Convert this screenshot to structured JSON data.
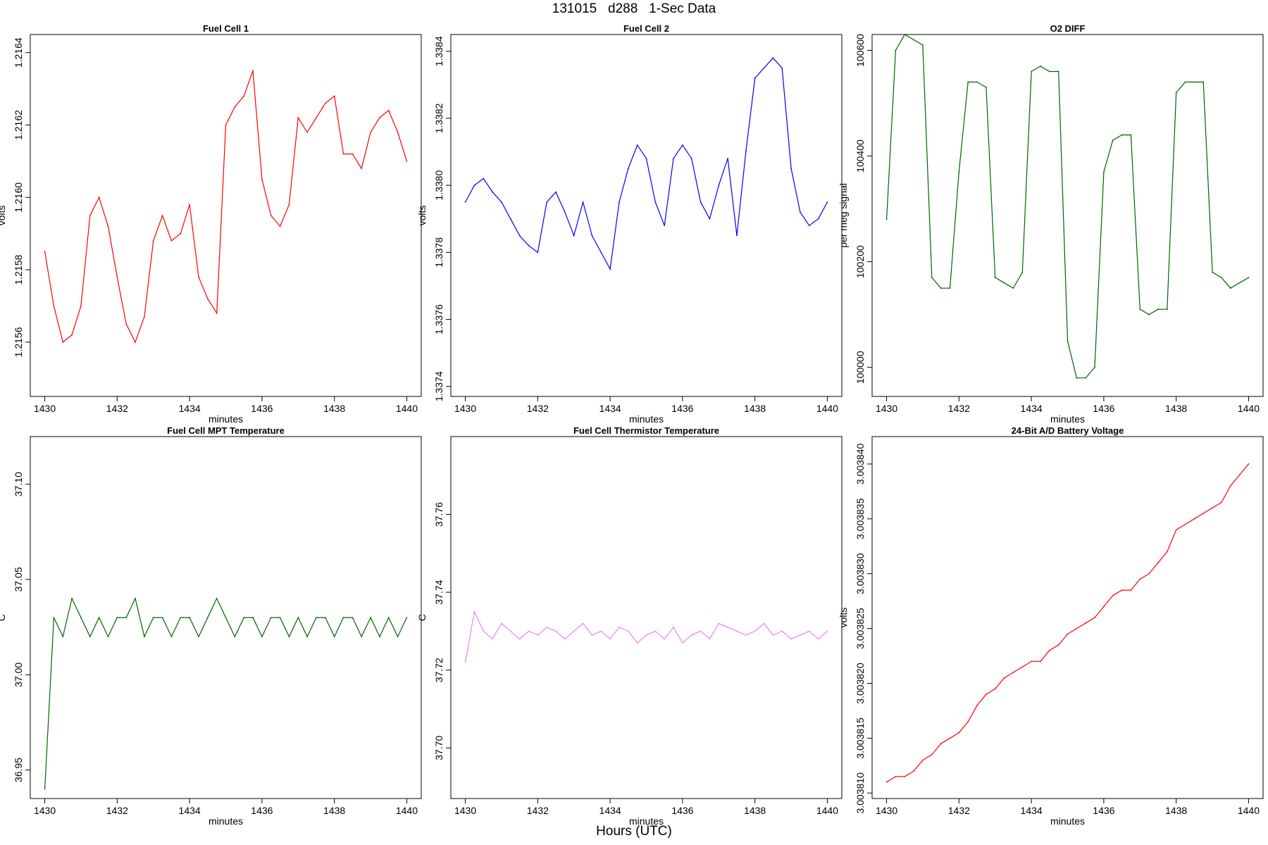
{
  "page": {
    "title": "131015   d288   1-Sec Data",
    "footer": "Hours (UTC)"
  },
  "chart_data": [
    {
      "type": "line",
      "title": "Fuel Cell 1",
      "xlabel": "minutes",
      "ylabel": "volts",
      "color": "#ff0000",
      "xlim": [
        1429.6,
        1440.4
      ],
      "ylim": [
        1.21545,
        1.21645
      ],
      "xticks": [
        1430,
        1432,
        1434,
        1436,
        1438,
        1440
      ],
      "yticks": [
        1.2156,
        1.2158,
        1.216,
        1.2162,
        1.2164
      ],
      "ytick_labels": [
        "1.2156",
        "1.2158",
        "1.2160",
        "1.2162",
        "1.2164"
      ],
      "series": [
        {
          "x": [
            1430,
            1430.25,
            1430.5,
            1430.75,
            1431,
            1431.25,
            1431.5,
            1431.75,
            1432,
            1432.25,
            1432.5,
            1432.75,
            1433,
            1433.25,
            1433.5,
            1433.75,
            1434,
            1434.25,
            1434.5,
            1434.75,
            1435,
            1435.25,
            1435.5,
            1435.75,
            1436,
            1436.25,
            1436.5,
            1436.75,
            1437,
            1437.25,
            1437.5,
            1437.75,
            1438,
            1438.25,
            1438.5,
            1438.75,
            1439,
            1439.25,
            1439.5,
            1439.75,
            1440
          ],
          "values": [
            1.21585,
            1.2157,
            1.2156,
            1.21562,
            1.2157,
            1.21595,
            1.216,
            1.21592,
            1.21578,
            1.21565,
            1.2156,
            1.21567,
            1.21588,
            1.21595,
            1.21588,
            1.2159,
            1.21598,
            1.21578,
            1.21572,
            1.21568,
            1.2162,
            1.21625,
            1.21628,
            1.21635,
            1.21605,
            1.21595,
            1.21592,
            1.21598,
            1.21622,
            1.21618,
            1.21622,
            1.21626,
            1.21628,
            1.21612,
            1.21612,
            1.21608,
            1.21618,
            1.21622,
            1.21624,
            1.21618,
            1.2161
          ]
        }
      ]
    },
    {
      "type": "line",
      "title": "Fuel Cell 2",
      "xlabel": "minutes",
      "ylabel": "volts",
      "color": "#0000ff",
      "xlim": [
        1429.6,
        1440.4
      ],
      "ylim": [
        1.33737,
        1.33845
      ],
      "xticks": [
        1430,
        1432,
        1434,
        1436,
        1438,
        1440
      ],
      "yticks": [
        1.3374,
        1.3376,
        1.3378,
        1.338,
        1.3382,
        1.3384
      ],
      "ytick_labels": [
        "1.3374",
        "1.3376",
        "1.3378",
        "1.3380",
        "1.3382",
        "1.3384"
      ],
      "series": [
        {
          "x": [
            1430,
            1430.25,
            1430.5,
            1430.75,
            1431,
            1431.25,
            1431.5,
            1431.75,
            1432,
            1432.25,
            1432.5,
            1432.75,
            1433,
            1433.25,
            1433.5,
            1433.75,
            1434,
            1434.25,
            1434.5,
            1434.75,
            1435,
            1435.25,
            1435.5,
            1435.75,
            1436,
            1436.25,
            1436.5,
            1436.75,
            1437,
            1437.25,
            1437.5,
            1437.75,
            1438,
            1438.25,
            1438.5,
            1438.75,
            1439,
            1439.25,
            1439.5,
            1439.75,
            1440
          ],
          "values": [
            1.33795,
            1.338,
            1.33802,
            1.33798,
            1.33795,
            1.3379,
            1.33785,
            1.33782,
            1.3378,
            1.33795,
            1.33798,
            1.33792,
            1.33785,
            1.33795,
            1.33785,
            1.3378,
            1.33775,
            1.33795,
            1.33805,
            1.33812,
            1.33808,
            1.33795,
            1.33788,
            1.33808,
            1.33812,
            1.33808,
            1.33795,
            1.3379,
            1.338,
            1.33808,
            1.33785,
            1.3381,
            1.33832,
            1.33835,
            1.33838,
            1.33835,
            1.33805,
            1.33792,
            1.33788,
            1.3379,
            1.33795
          ]
        }
      ]
    },
    {
      "type": "line",
      "title": "O2 DIFF",
      "xlabel": "minutes",
      "ylabel": "per meg signal",
      "color": "#006400",
      "xlim": [
        1429.6,
        1440.4
      ],
      "ylim": [
        99945,
        100630
      ],
      "xticks": [
        1430,
        1432,
        1434,
        1436,
        1438,
        1440
      ],
      "yticks": [
        100000,
        100200,
        100400,
        100600
      ],
      "ytick_labels": [
        "100000",
        "100200",
        "100400",
        "100600"
      ],
      "series": [
        {
          "x": [
            1430,
            1430.25,
            1430.5,
            1430.75,
            1431,
            1431.25,
            1431.5,
            1431.75,
            1432,
            1432.25,
            1432.5,
            1432.75,
            1433,
            1433.25,
            1433.5,
            1433.75,
            1434,
            1434.25,
            1434.5,
            1434.75,
            1435,
            1435.25,
            1435.5,
            1435.75,
            1436,
            1436.25,
            1436.5,
            1436.75,
            1437,
            1437.25,
            1437.5,
            1437.75,
            1438,
            1438.25,
            1438.5,
            1438.75,
            1439,
            1439.25,
            1439.5,
            1439.75,
            1440
          ],
          "values": [
            100280,
            100600,
            100630,
            100620,
            100610,
            100170,
            100150,
            100150,
            100370,
            100540,
            100540,
            100530,
            100170,
            100160,
            100150,
            100180,
            100560,
            100570,
            100560,
            100560,
            100050,
            99980,
            99980,
            100000,
            100370,
            100430,
            100440,
            100440,
            100110,
            100100,
            100110,
            100110,
            100520,
            100540,
            100540,
            100540,
            100180,
            100170,
            100150,
            100160,
            100170
          ]
        }
      ]
    },
    {
      "type": "line",
      "title": "Fuel Cell MPT Temperature",
      "xlabel": "minutes",
      "ylabel": "C",
      "color": "#006400",
      "xlim": [
        1429.6,
        1440.4
      ],
      "ylim": [
        36.935,
        37.125
      ],
      "xticks": [
        1430,
        1432,
        1434,
        1436,
        1438,
        1440
      ],
      "yticks": [
        36.95,
        37.0,
        37.05,
        37.1
      ],
      "ytick_labels": [
        "36.95",
        "37.00",
        "37.05",
        "37.10"
      ],
      "series": [
        {
          "x": [
            1430,
            1430.25,
            1430.5,
            1430.75,
            1431,
            1431.25,
            1431.5,
            1431.75,
            1432,
            1432.25,
            1432.5,
            1432.75,
            1433,
            1433.25,
            1433.5,
            1433.75,
            1434,
            1434.25,
            1434.5,
            1434.75,
            1435,
            1435.25,
            1435.5,
            1435.75,
            1436,
            1436.25,
            1436.5,
            1436.75,
            1437,
            1437.25,
            1437.5,
            1437.75,
            1438,
            1438.25,
            1438.5,
            1438.75,
            1439,
            1439.25,
            1439.5,
            1439.75,
            1440
          ],
          "values": [
            36.94,
            37.03,
            37.02,
            37.04,
            37.03,
            37.02,
            37.03,
            37.02,
            37.03,
            37.03,
            37.04,
            37.02,
            37.03,
            37.03,
            37.02,
            37.03,
            37.03,
            37.02,
            37.03,
            37.04,
            37.03,
            37.02,
            37.03,
            37.03,
            37.02,
            37.03,
            37.03,
            37.02,
            37.03,
            37.02,
            37.03,
            37.03,
            37.02,
            37.03,
            37.03,
            37.02,
            37.03,
            37.02,
            37.03,
            37.02,
            37.03
          ]
        }
      ]
    },
    {
      "type": "line",
      "title": "Fuel Cell Thermistor Temperature",
      "xlabel": "minutes",
      "ylabel": "C",
      "color": "#ee82ee",
      "xlim": [
        1429.6,
        1440.4
      ],
      "ylim": [
        37.687,
        37.78
      ],
      "xticks": [
        1430,
        1432,
        1434,
        1436,
        1438,
        1440
      ],
      "yticks": [
        37.7,
        37.72,
        37.74,
        37.76
      ],
      "ytick_labels": [
        "37.70",
        "37.72",
        "37.74",
        "37.76"
      ],
      "series": [
        {
          "x": [
            1430,
            1430.25,
            1430.5,
            1430.75,
            1431,
            1431.25,
            1431.5,
            1431.75,
            1432,
            1432.25,
            1432.5,
            1432.75,
            1433,
            1433.25,
            1433.5,
            1433.75,
            1434,
            1434.25,
            1434.5,
            1434.75,
            1435,
            1435.25,
            1435.5,
            1435.75,
            1436,
            1436.25,
            1436.5,
            1436.75,
            1437,
            1437.25,
            1437.5,
            1437.75,
            1438,
            1438.25,
            1438.5,
            1438.75,
            1439,
            1439.25,
            1439.5,
            1439.75,
            1440
          ],
          "values": [
            37.722,
            37.735,
            37.73,
            37.728,
            37.732,
            37.73,
            37.728,
            37.73,
            37.729,
            37.731,
            37.73,
            37.728,
            37.73,
            37.732,
            37.729,
            37.73,
            37.728,
            37.731,
            37.73,
            37.727,
            37.729,
            37.73,
            37.728,
            37.731,
            37.727,
            37.729,
            37.73,
            37.728,
            37.732,
            37.731,
            37.73,
            37.729,
            37.73,
            37.732,
            37.729,
            37.73,
            37.728,
            37.729,
            37.73,
            37.728,
            37.73
          ]
        }
      ]
    },
    {
      "type": "line",
      "title": "24-Bit A/D Battery Voltage",
      "xlabel": "minutes",
      "ylabel": "volts",
      "color": "#ff0000",
      "xlim": [
        1429.6,
        1440.4
      ],
      "ylim": [
        3.0038095,
        3.0038425
      ],
      "xticks": [
        1430,
        1432,
        1434,
        1436,
        1438,
        1440
      ],
      "yticks": [
        3.00381,
        3.003815,
        3.00382,
        3.003825,
        3.00383,
        3.003835,
        3.00384
      ],
      "ytick_labels": [
        "3.003810",
        "3.003815",
        "3.003820",
        "3.003825",
        "3.003830",
        "3.003835",
        "3.003840"
      ],
      "series": [
        {
          "x": [
            1430,
            1430.25,
            1430.5,
            1430.75,
            1431,
            1431.25,
            1431.5,
            1431.75,
            1432,
            1432.25,
            1432.5,
            1432.75,
            1433,
            1433.25,
            1433.5,
            1433.75,
            1434,
            1434.25,
            1434.5,
            1434.75,
            1435,
            1435.25,
            1435.5,
            1435.75,
            1436,
            1436.25,
            1436.5,
            1436.75,
            1437,
            1437.25,
            1437.5,
            1437.75,
            1438,
            1438.25,
            1438.5,
            1438.75,
            1439,
            1439.25,
            1439.5,
            1439.75,
            1440
          ],
          "values": [
            3.003811,
            3.0038115,
            3.0038115,
            3.003812,
            3.003813,
            3.0038135,
            3.0038145,
            3.003815,
            3.0038155,
            3.0038165,
            3.003818,
            3.003819,
            3.0038195,
            3.0038205,
            3.003821,
            3.0038215,
            3.003822,
            3.003822,
            3.003823,
            3.0038235,
            3.0038245,
            3.003825,
            3.0038255,
            3.003826,
            3.003827,
            3.003828,
            3.0038285,
            3.0038285,
            3.0038295,
            3.00383,
            3.003831,
            3.003832,
            3.003834,
            3.0038345,
            3.003835,
            3.0038355,
            3.003836,
            3.0038365,
            3.003838,
            3.003839,
            3.00384
          ]
        }
      ]
    }
  ]
}
